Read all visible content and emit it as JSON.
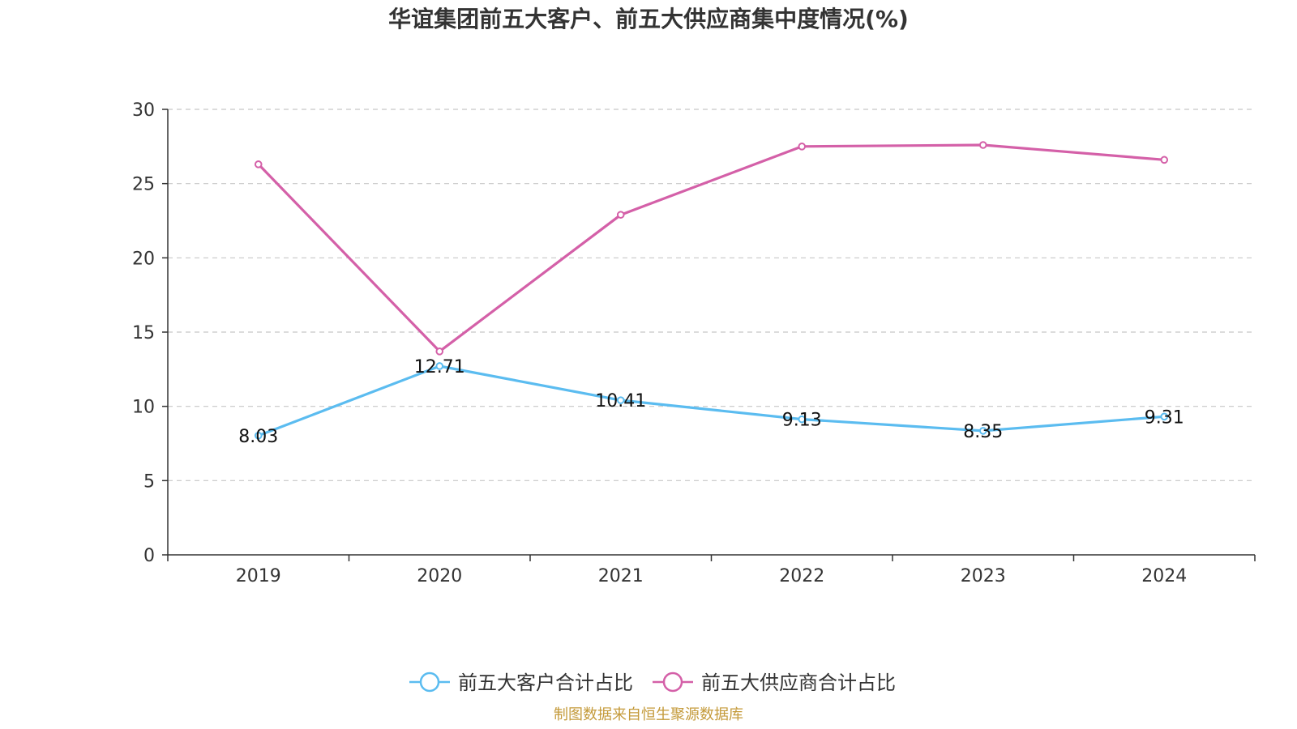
{
  "chart_data": {
    "type": "line",
    "title": "华谊集团前五大客户、前五大供应商集中度情况(%)",
    "categories": [
      "2019",
      "2020",
      "2021",
      "2022",
      "2023",
      "2024"
    ],
    "ylim": [
      0,
      30
    ],
    "yticks": [
      0,
      5,
      10,
      15,
      20,
      25,
      30
    ],
    "grid": true,
    "legend_position": "bottom",
    "series": [
      {
        "name": "前五大客户合计占比",
        "color": "#5bbcf0",
        "values": [
          8.03,
          12.71,
          10.41,
          9.13,
          8.35,
          9.31
        ],
        "labels": [
          "8.03",
          "12.71",
          "10.41",
          "9.13",
          "8.35",
          "9.31"
        ],
        "show_labels": true
      },
      {
        "name": "前五大供应商合计占比",
        "color": "#d460a8",
        "values": [
          26.3,
          13.7,
          22.9,
          27.5,
          27.6,
          26.6
        ],
        "show_labels": false
      }
    ],
    "source": "制图数据来自恒生聚源数据库",
    "source_color": "#c49a3a"
  }
}
